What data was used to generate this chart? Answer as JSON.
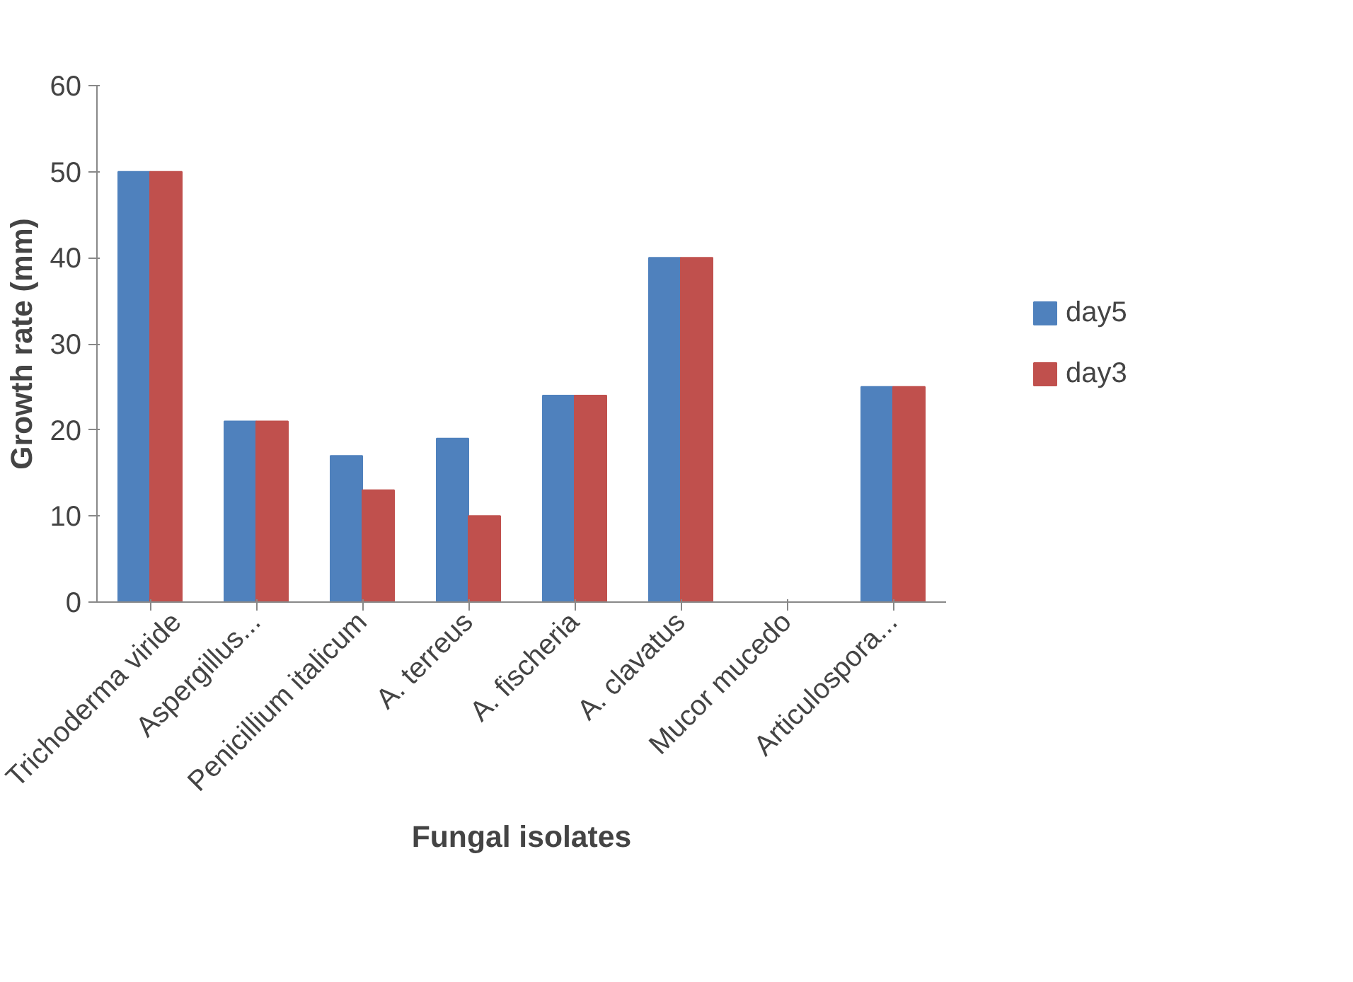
{
  "chart_data": {
    "type": "bar",
    "xlabel": "Fungal isolates",
    "ylabel": "Growth rate (mm)",
    "categories": [
      "Trichoderma viride",
      "Aspergillus...",
      "Penicillium italicum",
      "A. terreus",
      "A. fischeria",
      "A. clavatus",
      "Mucor mucedo",
      "Articulospora..."
    ],
    "series": [
      {
        "name": "day5",
        "color": "#4f81bd",
        "values": [
          50,
          21,
          17,
          19,
          24,
          40,
          0,
          25
        ]
      },
      {
        "name": "day3",
        "color": "#c0504d",
        "values": [
          50,
          21,
          13,
          10,
          24,
          40,
          0,
          25
        ]
      }
    ],
    "ylim": [
      0,
      60
    ],
    "yticks": [
      0,
      10,
      20,
      30,
      40,
      50,
      60
    ],
    "grid": false,
    "legend": "right"
  }
}
